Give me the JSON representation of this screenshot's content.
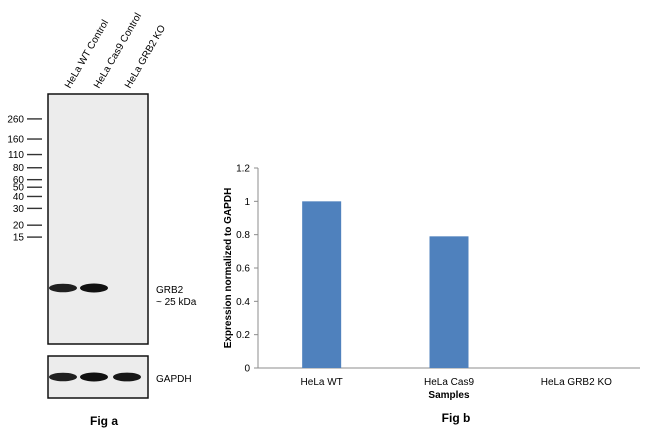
{
  "fig_a": {
    "lane_labels": [
      "HeLa WT Control",
      "HeLa Cas9 Control",
      "HeLa GRB2 KO"
    ],
    "markers": [
      "260",
      "160",
      "110",
      "80",
      "60",
      "50",
      "40",
      "30",
      "20",
      "15"
    ],
    "marker_values": [
      260,
      160,
      110,
      80,
      60,
      50,
      40,
      30,
      20,
      15
    ],
    "band_label_line1": "GRB2",
    "band_label_line2": "~ 25 kDa",
    "loading_label": "GAPDH",
    "grb2_band_intensity": [
      0.85,
      1.0,
      0.0
    ],
    "gapdh_band_intensity": [
      0.85,
      1.0,
      0.95
    ],
    "caption": "Fig a"
  },
  "chart_data": {
    "type": "bar",
    "categories": [
      "HeLa WT",
      "HeLa Cas9",
      "HeLa GRB2 KO"
    ],
    "values": [
      1.0,
      0.79,
      0.0
    ],
    "title": "",
    "xlabel": "Samples",
    "ylabel": "Expression  normalized to GAPDH",
    "ylim": [
      0,
      1.2
    ],
    "yticks": [
      0,
      0.2,
      0.4,
      0.6,
      0.8,
      1,
      1.2
    ],
    "ytick_labels": [
      "0",
      "0.2",
      "0.4",
      "0.6",
      "0.8",
      "1",
      "1.2"
    ],
    "grid": false,
    "bar_color": "#4f81bd",
    "caption": "Fig b"
  }
}
